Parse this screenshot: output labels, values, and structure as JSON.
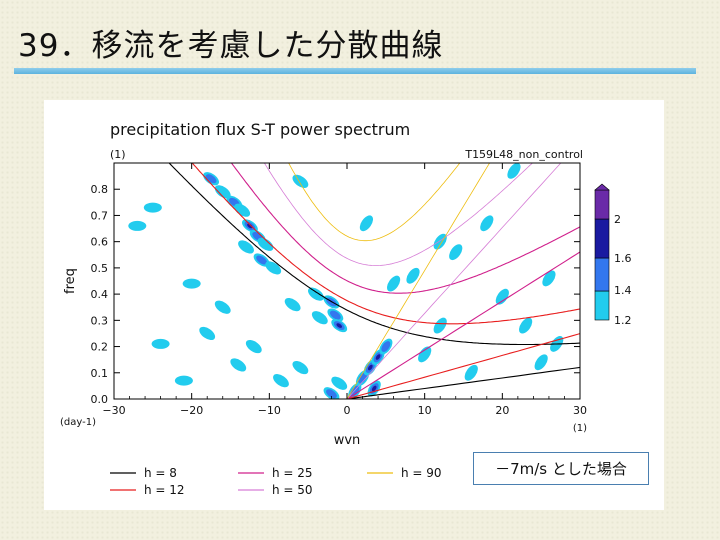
{
  "slide": {
    "title": "39．移流を考慮した分散曲線",
    "annotation": "－7m/s とした場合"
  },
  "chart_data": {
    "type": "heatmap",
    "title": "precipitation flux S-T power spectrum",
    "subtitle_left": "(1)",
    "subtitle_right": "T159L48_non_control",
    "xlabel": "wvn",
    "ylabel": "freq",
    "x_unit_label": "(1)",
    "y_unit_label": "(day-1)",
    "xlim": [
      -30,
      30
    ],
    "ylim": [
      0,
      0.9
    ],
    "xticks": [
      -30,
      -20,
      -10,
      0,
      10,
      20,
      30
    ],
    "yticks": [
      0.0,
      0.1,
      0.2,
      0.3,
      0.4,
      0.5,
      0.6,
      0.7,
      0.8
    ],
    "doppler_shift_mps": -7,
    "colorbar": {
      "levels": [
        1.2,
        1.4,
        1.6,
        2
      ],
      "colors": [
        "#22ccee",
        "#3377ee",
        "#1a1aa0",
        "#6a2aa8"
      ]
    },
    "legend": [
      {
        "label": "h =  8",
        "h": 8,
        "color": "#000000",
        "style": "solid"
      },
      {
        "label": "h = 12",
        "h": 12,
        "color": "#e81e1e",
        "style": "solid"
      },
      {
        "label": "h = 25",
        "h": 25,
        "color": "#d0208c",
        "style": "solid"
      },
      {
        "label": "h = 50",
        "h": 50,
        "color": "#d67ed6",
        "style": "solid"
      },
      {
        "label": "h = 90",
        "h": 90,
        "color": "#eebd10",
        "style": "solid"
      }
    ],
    "power_blobs": [
      {
        "x": -17.5,
        "y": 0.84,
        "level": 2
      },
      {
        "x": -16.0,
        "y": 0.79,
        "level": 1
      },
      {
        "x": -14.5,
        "y": 0.75,
        "level": 2
      },
      {
        "x": -13.5,
        "y": 0.72,
        "level": 1
      },
      {
        "x": -12.5,
        "y": 0.66,
        "level": 3
      },
      {
        "x": -11.5,
        "y": 0.62,
        "level": 2
      },
      {
        "x": -10.5,
        "y": 0.59,
        "level": 1
      },
      {
        "x": -13.0,
        "y": 0.58,
        "level": 1
      },
      {
        "x": -11.0,
        "y": 0.53,
        "level": 2
      },
      {
        "x": -9.5,
        "y": 0.5,
        "level": 1
      },
      {
        "x": -4.0,
        "y": 0.4,
        "level": 1
      },
      {
        "x": -2.0,
        "y": 0.37,
        "level": 2
      },
      {
        "x": -1.5,
        "y": 0.32,
        "level": 2
      },
      {
        "x": -1.0,
        "y": 0.28,
        "level": 3
      },
      {
        "x": -3.5,
        "y": 0.31,
        "level": 1
      },
      {
        "x": 2.0,
        "y": 0.08,
        "level": 2
      },
      {
        "x": 3.0,
        "y": 0.12,
        "level": 3
      },
      {
        "x": 4.0,
        "y": 0.16,
        "level": 3
      },
      {
        "x": 5.0,
        "y": 0.2,
        "level": 2
      },
      {
        "x": 3.5,
        "y": 0.04,
        "level": 3
      },
      {
        "x": 1.0,
        "y": 0.03,
        "level": 2
      },
      {
        "x": -2.0,
        "y": 0.02,
        "level": 2
      },
      {
        "x": -1.0,
        "y": 0.06,
        "level": 1
      },
      {
        "x": -27.0,
        "y": 0.66,
        "level": 1
      },
      {
        "x": -25.0,
        "y": 0.73,
        "level": 1
      },
      {
        "x": -20.0,
        "y": 0.44,
        "level": 1
      },
      {
        "x": -24.0,
        "y": 0.21,
        "level": 1
      },
      {
        "x": -18.0,
        "y": 0.25,
        "level": 1
      },
      {
        "x": -12.0,
        "y": 0.2,
        "level": 1
      },
      {
        "x": -8.5,
        "y": 0.07,
        "level": 1
      },
      {
        "x": -21.0,
        "y": 0.07,
        "level": 1
      },
      {
        "x": -14.0,
        "y": 0.13,
        "level": 1
      },
      {
        "x": -6.0,
        "y": 0.12,
        "level": 1
      },
      {
        "x": 6.0,
        "y": 0.44,
        "level": 1
      },
      {
        "x": 8.5,
        "y": 0.47,
        "level": 1
      },
      {
        "x": 12.0,
        "y": 0.6,
        "level": 1
      },
      {
        "x": 14.0,
        "y": 0.56,
        "level": 1
      },
      {
        "x": 18.0,
        "y": 0.67,
        "level": 1
      },
      {
        "x": 20.0,
        "y": 0.39,
        "level": 1
      },
      {
        "x": 23.0,
        "y": 0.28,
        "level": 1
      },
      {
        "x": 25.0,
        "y": 0.14,
        "level": 1
      },
      {
        "x": 26.0,
        "y": 0.46,
        "level": 1
      },
      {
        "x": 27.0,
        "y": 0.21,
        "level": 1
      },
      {
        "x": 16.0,
        "y": 0.1,
        "level": 1
      },
      {
        "x": 12.0,
        "y": 0.28,
        "level": 1
      },
      {
        "x": 10.0,
        "y": 0.17,
        "level": 1
      },
      {
        "x": -7.0,
        "y": 0.36,
        "level": 1
      },
      {
        "x": -16.0,
        "y": 0.35,
        "level": 1
      },
      {
        "x": 2.5,
        "y": 0.67,
        "level": 1
      },
      {
        "x": -6.0,
        "y": 0.83,
        "level": 1
      },
      {
        "x": 21.5,
        "y": 0.87,
        "level": 1
      }
    ]
  }
}
